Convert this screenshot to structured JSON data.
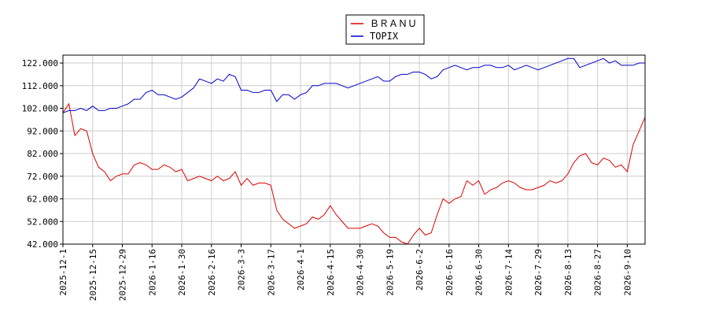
{
  "chart_data": {
    "type": "line",
    "categories": [
      "2025-12-1",
      null,
      null,
      null,
      null,
      "2025-12-15",
      null,
      null,
      null,
      null,
      "2025-12-29",
      null,
      null,
      null,
      null,
      "2026-1-16",
      null,
      null,
      null,
      null,
      "2026-1-30",
      null,
      null,
      null,
      null,
      "2026-2-16",
      null,
      null,
      null,
      null,
      "2026-3-3",
      null,
      null,
      null,
      null,
      "2026-3-17",
      null,
      null,
      null,
      null,
      "2026-4-1",
      null,
      null,
      null,
      null,
      "2026-4-15",
      null,
      null,
      null,
      null,
      "2026-4-30",
      null,
      null,
      null,
      null,
      "2026-5-19",
      null,
      null,
      null,
      null,
      "2026-6-2",
      null,
      null,
      null,
      null,
      "2026-6-16",
      null,
      null,
      null,
      null,
      "2026-6-30",
      null,
      null,
      null,
      null,
      "2026-7-14",
      null,
      null,
      null,
      null,
      "2026-7-29",
      null,
      null,
      null,
      null,
      "2026-8-13",
      null,
      null,
      null,
      null,
      "2026-8-27",
      null,
      null,
      null,
      null,
      "2026-9-10",
      null,
      null,
      null
    ],
    "series": [
      {
        "name": "ＢＲＡＮＵ",
        "color": "#dd0000",
        "values": [
          100,
          104,
          90,
          93,
          92,
          82,
          76,
          74,
          70,
          72,
          73,
          73,
          77,
          78,
          77,
          75,
          75,
          77,
          76,
          74,
          75,
          70,
          71,
          72,
          71,
          70,
          72,
          70,
          71,
          74,
          68,
          71,
          68,
          69,
          69,
          68,
          57,
          53,
          51,
          49,
          50,
          51,
          54,
          53,
          55,
          59,
          55,
          52,
          49,
          49,
          49,
          50,
          51,
          50,
          47,
          45,
          45,
          43,
          42,
          46,
          49,
          46,
          47,
          55,
          62,
          60,
          62,
          63,
          70,
          68,
          70,
          64,
          66,
          67,
          69,
          70,
          69,
          67,
          66,
          66,
          67,
          68,
          70,
          69,
          70,
          73,
          78,
          81,
          82,
          78,
          77,
          80,
          79,
          76,
          77,
          74,
          86,
          92,
          98
        ]
      },
      {
        "name": "TOPIX",
        "color": "#0000cc",
        "values": [
          100,
          101,
          101,
          102,
          101,
          103,
          101,
          101,
          102,
          102,
          103,
          104,
          106,
          106,
          109,
          110,
          108,
          108,
          107,
          106,
          107,
          109,
          111,
          115,
          114,
          113,
          115,
          114,
          117,
          116,
          110,
          110,
          109,
          109,
          110,
          110,
          105,
          108,
          108,
          106,
          108,
          109,
          112,
          112,
          113,
          113,
          113,
          112,
          111,
          112,
          113,
          114,
          115,
          116,
          114,
          114,
          116,
          117,
          117,
          118,
          118,
          117,
          115,
          116,
          119,
          120,
          121,
          120,
          119,
          120,
          120,
          121,
          121,
          120,
          120,
          121,
          119,
          120,
          121,
          120,
          119,
          120,
          121,
          122,
          123,
          124,
          124,
          120,
          121,
          122,
          123,
          124,
          122,
          123,
          121,
          121,
          121,
          122,
          122
        ]
      }
    ],
    "ylim": [
      42,
      125.5
    ],
    "yticks": [
      {
        "value": 42,
        "label": "42.000"
      },
      {
        "value": 52,
        "label": "52.000"
      },
      {
        "value": 62,
        "label": "62.000"
      },
      {
        "value": 72,
        "label": "72.000"
      },
      {
        "value": 82,
        "label": "82.000"
      },
      {
        "value": 92,
        "label": "92.000"
      },
      {
        "value": 102,
        "label": "102.000"
      },
      {
        "value": 112,
        "label": "112.000"
      },
      {
        "value": 122,
        "label": "122.000"
      }
    ],
    "grid": true,
    "legend": "top"
  }
}
